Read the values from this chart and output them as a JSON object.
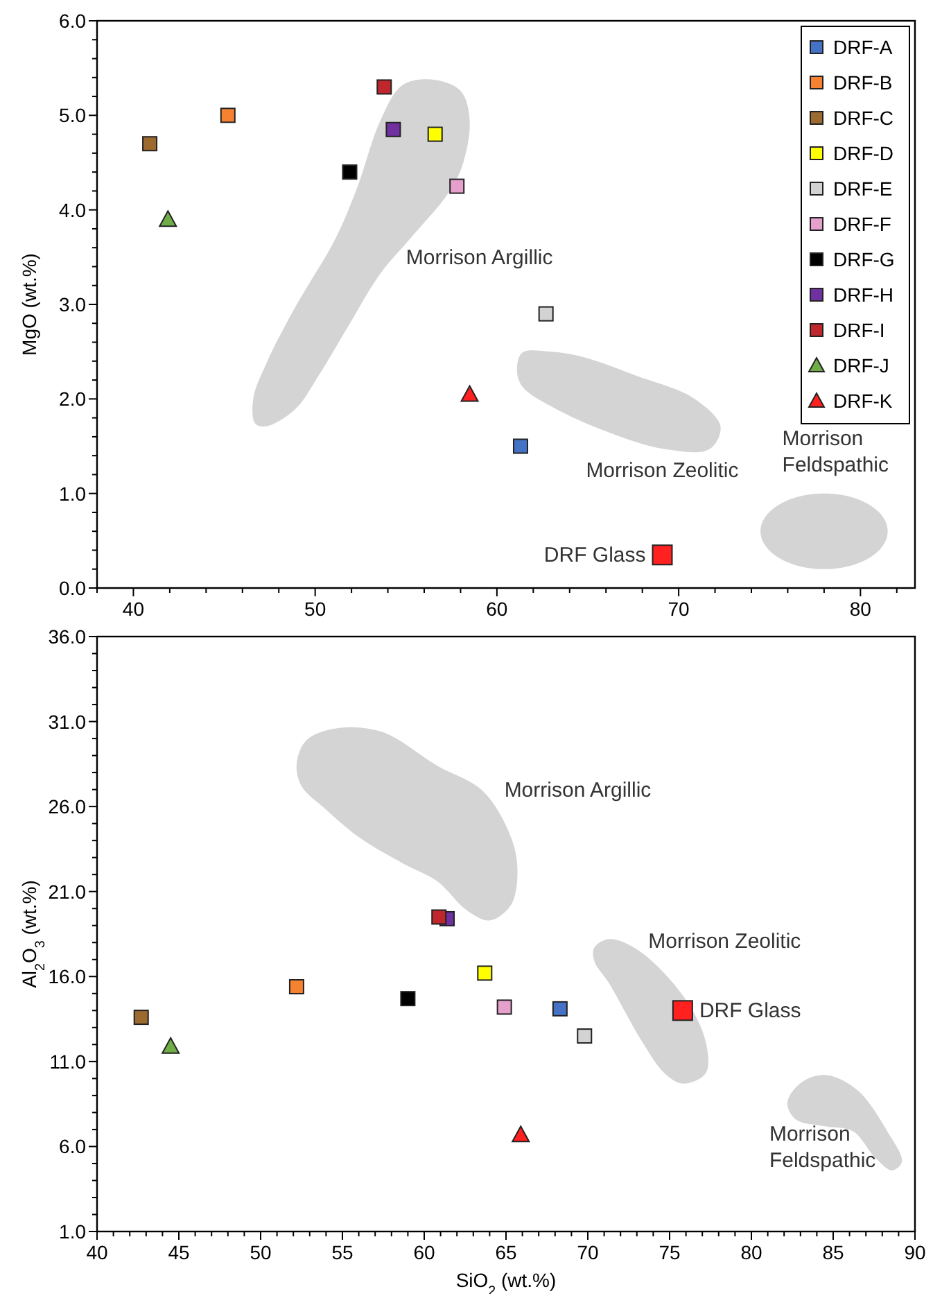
{
  "chart_data": [
    {
      "type": "scatter",
      "ylabel": "MgO (wt.%)",
      "xlim": [
        38,
        83
      ],
      "ylim": [
        0,
        6
      ],
      "xticks": [
        {
          "value": 38,
          "label": null
        },
        40,
        {
          "value": 42,
          "label": null
        },
        {
          "value": 44,
          "label": null
        },
        {
          "value": 46,
          "label": null
        },
        {
          "value": 48,
          "label": null
        },
        50,
        {
          "value": 52,
          "label": null
        },
        {
          "value": 54,
          "label": null
        },
        {
          "value": 56,
          "label": null
        },
        {
          "value": 58,
          "label": null
        },
        60,
        {
          "value": 62,
          "label": null
        },
        {
          "value": 64,
          "label": null
        },
        {
          "value": 66,
          "label": null
        },
        {
          "value": 68,
          "label": null
        },
        70,
        {
          "value": 72,
          "label": null
        },
        {
          "value": 74,
          "label": null
        },
        {
          "value": 76,
          "label": null
        },
        {
          "value": 78,
          "label": null
        },
        80,
        {
          "value": 82,
          "label": null
        }
      ],
      "yticks": [
        {
          "value": 0,
          "label": "0.0"
        },
        {
          "value": 0.2,
          "label": null
        },
        {
          "value": 0.4,
          "label": null
        },
        {
          "value": 0.6,
          "label": null
        },
        {
          "value": 0.8,
          "label": null
        },
        {
          "value": 1,
          "label": "1.0"
        },
        {
          "value": 1.2,
          "label": null
        },
        {
          "value": 1.4,
          "label": null
        },
        {
          "value": 1.6,
          "label": null
        },
        {
          "value": 1.8,
          "label": null
        },
        {
          "value": 2,
          "label": "2.0"
        },
        {
          "value": 2.2,
          "label": null
        },
        {
          "value": 2.4,
          "label": null
        },
        {
          "value": 2.6,
          "label": null
        },
        {
          "value": 2.8,
          "label": null
        },
        {
          "value": 3,
          "label": "3.0"
        },
        {
          "value": 3.2,
          "label": null
        },
        {
          "value": 3.4,
          "label": null
        },
        {
          "value": 3.6,
          "label": null
        },
        {
          "value": 3.8,
          "label": null
        },
        {
          "value": 4,
          "label": "4.0"
        },
        {
          "value": 4.2,
          "label": null
        },
        {
          "value": 4.4,
          "label": null
        },
        {
          "value": 4.6,
          "label": null
        },
        {
          "value": 4.8,
          "label": null
        },
        {
          "value": 5,
          "label": "5.0"
        },
        {
          "value": 5.2,
          "label": null
        },
        {
          "value": 5.4,
          "label": null
        },
        {
          "value": 5.6,
          "label": null
        },
        {
          "value": 5.8,
          "label": null
        },
        {
          "value": 6,
          "label": "6.0"
        }
      ],
      "grid": false,
      "legend": "top right",
      "series": [
        {
          "name": "DRF-A",
          "color": "#4472c4",
          "marker": "square",
          "x": [
            61.3
          ],
          "values": [
            1.5
          ]
        },
        {
          "name": "DRF-B",
          "color": "#f58131",
          "marker": "square",
          "x": [
            45.2
          ],
          "values": [
            5.0
          ]
        },
        {
          "name": "DRF-C",
          "color": "#9c6a2f",
          "marker": "square",
          "x": [
            40.9
          ],
          "values": [
            4.7
          ]
        },
        {
          "name": "DRF-D",
          "color": "#ffff00",
          "marker": "square",
          "x": [
            56.6
          ],
          "values": [
            4.8
          ]
        },
        {
          "name": "DRF-E",
          "color": "#d3d3d3",
          "marker": "square",
          "x": [
            62.7
          ],
          "values": [
            2.9
          ]
        },
        {
          "name": "DRF-F",
          "color": "#e6a0cc",
          "marker": "square",
          "x": [
            57.8
          ],
          "values": [
            4.25
          ]
        },
        {
          "name": "DRF-G",
          "color": "#000000",
          "marker": "square",
          "x": [
            51.9
          ],
          "values": [
            4.4
          ]
        },
        {
          "name": "DRF-H",
          "color": "#7030a0",
          "marker": "square",
          "x": [
            54.3
          ],
          "values": [
            4.85
          ]
        },
        {
          "name": "DRF-I",
          "color": "#c0272d",
          "marker": "square",
          "x": [
            53.8
          ],
          "values": [
            5.3
          ]
        },
        {
          "name": "DRF-J",
          "color": "#70ad47",
          "marker": "triangle",
          "x": [
            41.9
          ],
          "values": [
            3.9
          ]
        },
        {
          "name": "DRF-K",
          "color": "#ff2020",
          "marker": "triangle",
          "x": [
            58.5
          ],
          "values": [
            2.05
          ]
        },
        {
          "color": "#ff2020",
          "marker": "square",
          "x": [
            69.1
          ],
          "values": [
            0.35
          ]
        }
      ],
      "annotations": [
        "Morrison Argillic",
        "Morrison Zeolitic",
        "Morrison\nFeldspathic",
        {
          "text": "DRF Glass",
          "x": 69.1,
          "y": 0.35
        }
      ]
    },
    {
      "type": "scatter",
      "xlabel": "SiO$_{2}$ (wt.%)",
      "ylabel": "Al$_{2}$O$_{3}$ (wt.%)",
      "xlim": [
        40,
        90
      ],
      "ylim": [
        1,
        36
      ],
      "xticks": [
        40,
        {
          "value": 41,
          "label": null
        },
        {
          "value": 42,
          "label": null
        },
        {
          "value": 43,
          "label": null
        },
        {
          "value": 44,
          "label": null
        },
        45,
        {
          "value": 46,
          "label": null
        },
        {
          "value": 47,
          "label": null
        },
        {
          "value": 48,
          "label": null
        },
        {
          "value": 49,
          "label": null
        },
        50,
        {
          "value": 51,
          "label": null
        },
        {
          "value": 52,
          "label": null
        },
        {
          "value": 53,
          "label": null
        },
        {
          "value": 54,
          "label": null
        },
        55,
        {
          "value": 56,
          "label": null
        },
        {
          "value": 57,
          "label": null
        },
        {
          "value": 58,
          "label": null
        },
        {
          "value": 59,
          "label": null
        },
        60,
        {
          "value": 61,
          "label": null
        },
        {
          "value": 62,
          "label": null
        },
        {
          "value": 63,
          "label": null
        },
        {
          "value": 64,
          "label": null
        },
        65,
        {
          "value": 66,
          "label": null
        },
        {
          "value": 67,
          "label": null
        },
        {
          "value": 68,
          "label": null
        },
        {
          "value": 69,
          "label": null
        },
        70,
        {
          "value": 71,
          "label": null
        },
        {
          "value": 72,
          "label": null
        },
        {
          "value": 73,
          "label": null
        },
        {
          "value": 74,
          "label": null
        },
        75,
        {
          "value": 76,
          "label": null
        },
        {
          "value": 77,
          "label": null
        },
        {
          "value": 78,
          "label": null
        },
        {
          "value": 79,
          "label": null
        },
        80,
        {
          "value": 81,
          "label": null
        },
        {
          "value": 82,
          "label": null
        },
        {
          "value": 83,
          "label": null
        },
        {
          "value": 84,
          "label": null
        },
        85,
        {
          "value": 86,
          "label": null
        },
        {
          "value": 87,
          "label": null
        },
        {
          "value": 88,
          "label": null
        },
        {
          "value": 89,
          "label": null
        },
        90
      ],
      "yticks": [
        {
          "value": 1,
          "label": "1.0"
        },
        {
          "value": 2,
          "label": null
        },
        {
          "value": 3,
          "label": null
        },
        {
          "value": 4,
          "label": null
        },
        {
          "value": 5,
          "label": null
        },
        {
          "value": 6,
          "label": "6.0"
        },
        {
          "value": 7,
          "label": null
        },
        {
          "value": 8,
          "label": null
        },
        {
          "value": 9,
          "label": null
        },
        {
          "value": 10,
          "label": null
        },
        {
          "value": 11,
          "label": "11.0"
        },
        {
          "value": 12,
          "label": null
        },
        {
          "value": 13,
          "label": null
        },
        {
          "value": 14,
          "label": null
        },
        {
          "value": 15,
          "label": null
        },
        {
          "value": 16,
          "label": "16.0"
        },
        {
          "value": 17,
          "label": null
        },
        {
          "value": 18,
          "label": null
        },
        {
          "value": 19,
          "label": null
        },
        {
          "value": 20,
          "label": null
        },
        {
          "value": 21,
          "label": "21.0"
        },
        {
          "value": 22,
          "label": null
        },
        {
          "value": 23,
          "label": null
        },
        {
          "value": 24,
          "label": null
        },
        {
          "value": 25,
          "label": null
        },
        {
          "value": 26,
          "label": "26.0"
        },
        {
          "value": 27,
          "label": null
        },
        {
          "value": 28,
          "label": null
        },
        {
          "value": 29,
          "label": null
        },
        {
          "value": 30,
          "label": null
        },
        {
          "value": 31,
          "label": "31.0"
        },
        {
          "value": 32,
          "label": null
        },
        {
          "value": 33,
          "label": null
        },
        {
          "value": 34,
          "label": null
        },
        {
          "value": 35,
          "label": null
        },
        {
          "value": 36,
          "label": "36.0"
        }
      ],
      "grid": false,
      "series": [
        {
          "color": "#4472c4",
          "marker": "square",
          "x": [
            68.3
          ],
          "values": [
            14.1
          ]
        },
        {
          "color": "#f58131",
          "marker": "square",
          "x": [
            52.2
          ],
          "values": [
            15.4
          ]
        },
        {
          "color": "#9c6a2f",
          "marker": "square",
          "x": [
            42.7
          ],
          "values": [
            13.6
          ]
        },
        {
          "color": "#ffff00",
          "marker": "square",
          "x": [
            63.7
          ],
          "values": [
            16.2
          ]
        },
        {
          "color": "#d3d3d3",
          "marker": "square",
          "x": [
            69.8
          ],
          "values": [
            12.5
          ]
        },
        {
          "color": "#e6a0cc",
          "marker": "square",
          "x": [
            64.9
          ],
          "values": [
            14.2
          ]
        },
        {
          "color": "#000000",
          "marker": "square",
          "x": [
            59.0
          ],
          "values": [
            14.7
          ]
        },
        {
          "color": "#7030a0",
          "marker": "square",
          "x": [
            61.4
          ],
          "values": [
            19.4
          ]
        },
        {
          "color": "#c0272d",
          "marker": "square",
          "x": [
            60.9
          ],
          "values": [
            19.5
          ]
        },
        {
          "color": "#70ad47",
          "marker": "triangle",
          "x": [
            44.5
          ],
          "values": [
            11.9
          ]
        },
        {
          "color": "#ff2020",
          "marker": "triangle",
          "x": [
            65.9
          ],
          "values": [
            6.7
          ]
        },
        {
          "color": "#ff2020",
          "marker": "square",
          "x": [
            75.8
          ],
          "values": [
            14.0
          ]
        }
      ],
      "annotations": [
        "Morrison Argillic",
        "Morrison Zeolitic",
        "Morrison\nFeldspathic",
        {
          "text": "DRF Glass",
          "x": 75.8,
          "y": 14.0
        }
      ]
    }
  ]
}
